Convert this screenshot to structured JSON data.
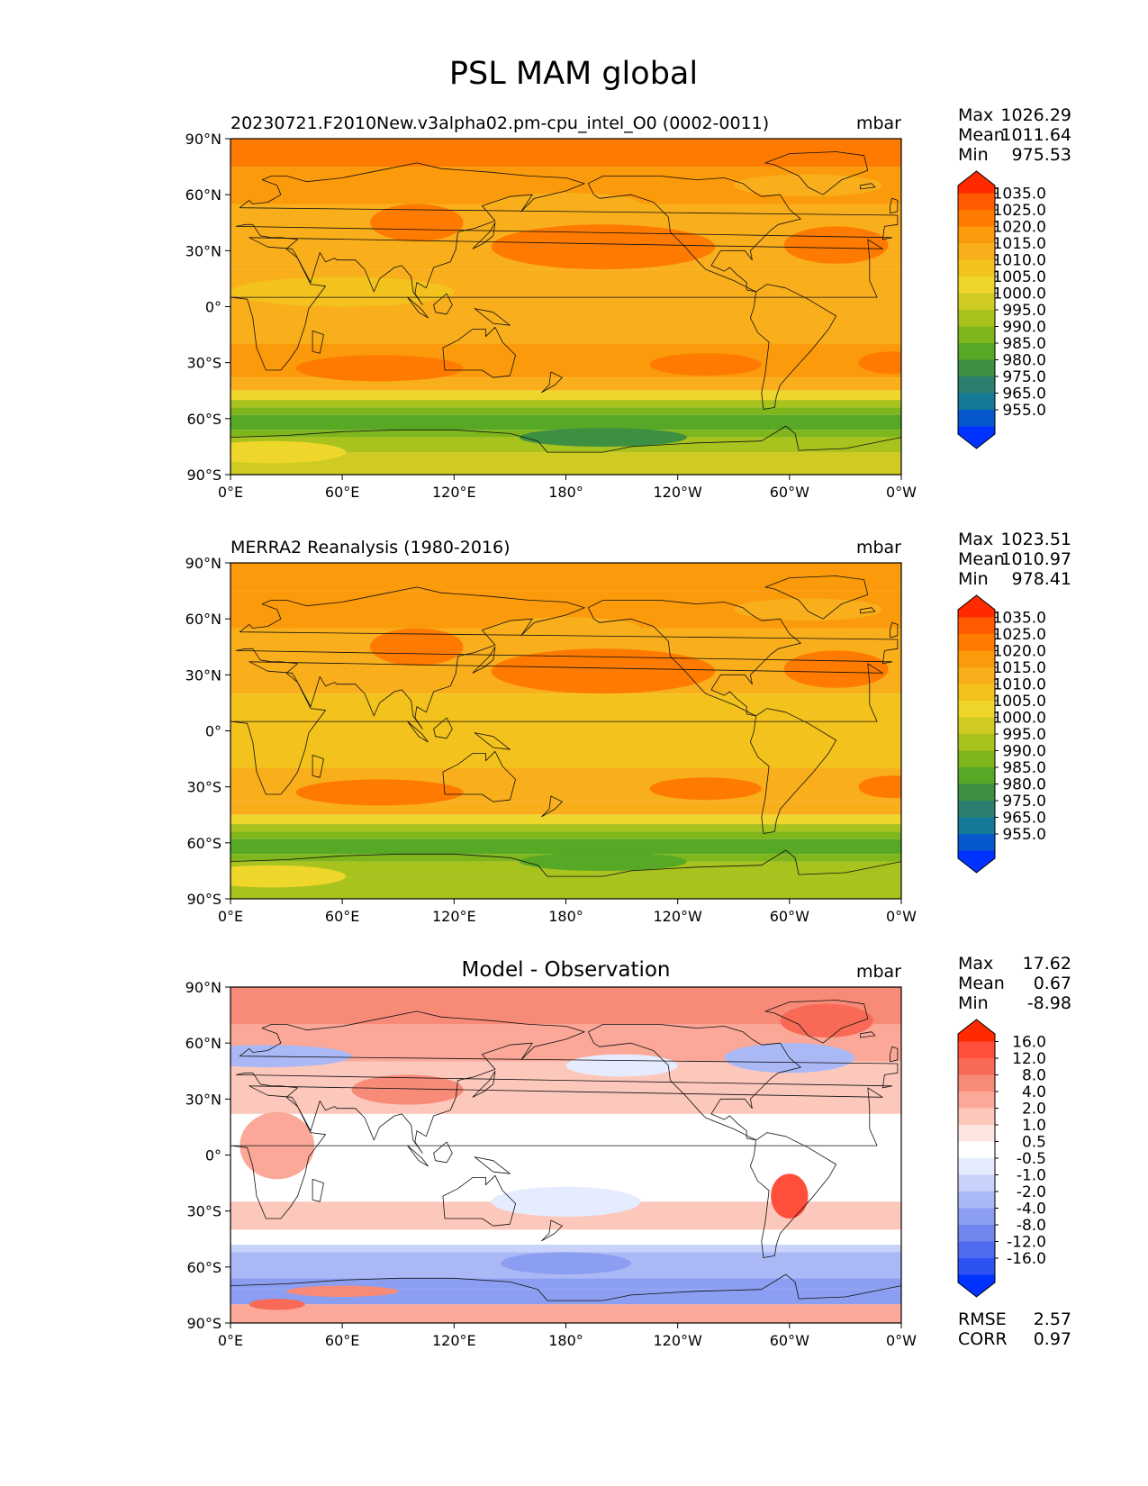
{
  "suptitle": "PSL MAM global",
  "lat_ticks": [
    "90°N",
    "60°N",
    "30°N",
    "0°",
    "30°S",
    "60°S",
    "90°S"
  ],
  "lon_ticks": [
    "0°E",
    "60°E",
    "120°E",
    "180°",
    "120°W",
    "60°W",
    "0°W"
  ],
  "stat_labels": {
    "max": "Max",
    "mean": "Mean",
    "min": "Min",
    "rmse": "RMSE",
    "corr": "CORR"
  },
  "panels": [
    {
      "id": "test",
      "title_left": "20230721.F2010New.v3alpha02.pm-cpu_intel_O0 (0002-0011)",
      "title_center": "",
      "units": "mbar",
      "stats": {
        "max": "1026.29",
        "mean": "1011.64",
        "min": "975.53"
      }
    },
    {
      "id": "ref",
      "title_left": "MERRA2 Reanalysis (1980-2016)",
      "title_center": "",
      "units": "mbar",
      "stats": {
        "max": "1023.51",
        "mean": "1010.97",
        "min": "978.41"
      }
    },
    {
      "id": "diff",
      "title_left": "",
      "title_center": "Model - Observation",
      "units": "mbar",
      "stats": {
        "max": "17.62",
        "mean": "0.67",
        "min": "-8.98"
      },
      "metrics": {
        "rmse": "2.57",
        "corr": "0.97"
      }
    }
  ],
  "chart_data": [
    {
      "type": "heatmap",
      "variable": "PSL",
      "season": "MAM",
      "region": "global",
      "title": "20230721.F2010New.v3alpha02.pm-cpu_intel_O0 (0002-0011)",
      "units": "mbar",
      "xlim": [
        0,
        360
      ],
      "ylim": [
        -90,
        90
      ],
      "colorbar": {
        "levels": [
          "1035.0",
          "1025.0",
          "1020.0",
          "1015.0",
          "1010.0",
          "1005.0",
          "1000.0",
          "995.0",
          "990.0",
          "985.0",
          "980.0",
          "975.0",
          "965.0",
          "955.0"
        ],
        "colors": [
          "#ff2a00",
          "#ff5a00",
          "#ff7a00",
          "#fb9a0a",
          "#f9ae1c",
          "#f4c21c",
          "#eed62a",
          "#cfcb23",
          "#a8c21e",
          "#7fb61c",
          "#56a825",
          "#3d9042",
          "#2c7f70",
          "#137a98",
          "#0658cc",
          "#0033ff"
        ]
      },
      "fields": {
        "subtropical_high_NPac": 1023,
        "subtropical_high_NAtl": 1022,
        "southern_ocean_trough": 980,
        "antarctica": 995,
        "tropics": 1011,
        "arctic": 1020
      }
    },
    {
      "type": "heatmap",
      "variable": "PSL",
      "season": "MAM",
      "region": "global",
      "title": "MERRA2 Reanalysis (1980-2016)",
      "units": "mbar",
      "xlim": [
        0,
        360
      ],
      "ylim": [
        -90,
        90
      ],
      "colorbar": {
        "levels": [
          "1035.0",
          "1025.0",
          "1020.0",
          "1015.0",
          "1010.0",
          "1005.0",
          "1000.0",
          "995.0",
          "990.0",
          "985.0",
          "980.0",
          "975.0",
          "965.0",
          "955.0"
        ],
        "colors": [
          "#ff2a00",
          "#ff5a00",
          "#ff7a00",
          "#fb9a0a",
          "#f9ae1c",
          "#f4c21c",
          "#eed62a",
          "#cfcb23",
          "#a8c21e",
          "#7fb61c",
          "#56a825",
          "#3d9042",
          "#2c7f70",
          "#137a98",
          "#0658cc",
          "#0033ff"
        ]
      },
      "fields": {
        "subtropical_high_NPac": 1021,
        "subtropical_high_NAtl": 1021,
        "southern_ocean_trough": 983,
        "antarctica": 992,
        "tropics": 1009,
        "arctic": 1018
      }
    },
    {
      "type": "heatmap",
      "variable": "PSL",
      "season": "MAM",
      "region": "global",
      "title": "Model - Observation",
      "units": "mbar",
      "xlim": [
        0,
        360
      ],
      "ylim": [
        -90,
        90
      ],
      "colorbar": {
        "levels": [
          "16.0",
          "12.0",
          "8.0",
          "4.0",
          "2.0",
          "1.0",
          "0.5",
          "-0.5",
          "-1.0",
          "-2.0",
          "-4.0",
          "-8.0",
          "-12.0",
          "-16.0"
        ],
        "colors": [
          "#ff2a00",
          "#ff4e3a",
          "#f86a55",
          "#f88a78",
          "#fba898",
          "#fcc8bc",
          "#fde6e0",
          "#ffffff",
          "#e6ecff",
          "#c8d2fa",
          "#aab8f6",
          "#8c9ef2",
          "#6e86ee",
          "#4f6cf0",
          "#2e52f2",
          "#0033ff"
        ]
      },
      "fields": {
        "arctic": 5,
        "greenland": 10,
        "north_atlantic": -4,
        "eurasia_mid": -3,
        "south_america": 12,
        "southern_ocean": -5,
        "antarctic_coast": 6,
        "antarctica": -6,
        "subtropics": 1.5
      }
    }
  ]
}
